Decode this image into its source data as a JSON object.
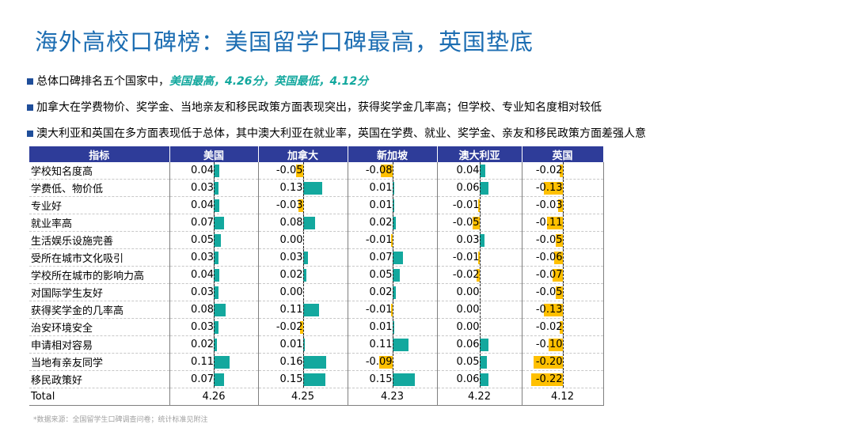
{
  "title": "海外高校口碑榜：美国留学口碑最高，英国垫底",
  "bullets": [
    {
      "text": "总体口碑排名五个国家中，",
      "highlight": "美国最高，4.26分，英国最低，4.12分"
    },
    {
      "text": "加拿大在学费物价、奖学金、当地亲友和移民政策方面表现突出，获得奖学金几率高；但学校、专业知名度相对较低",
      "highlight": ""
    },
    {
      "text": "澳大利亚和英国在多方面表现低于总体，其中澳大利亚在就业率，英国在学费、就业、奖学金、亲友和移民政策方面差强人意",
      "highlight": ""
    }
  ],
  "colors": {
    "positive": "#13a89e",
    "negative": "#ffc000",
    "header": "#2e3c99"
  },
  "table": {
    "headers": [
      "指标",
      "美国",
      "加拿大",
      "新加坡",
      "澳大利亚",
      "英国"
    ],
    "scale_max": 0.25,
    "rows": [
      {
        "label": "学校知名度高",
        "values": [
          "0.04",
          "-0.05",
          "-0.08",
          "0.04",
          "-0.02"
        ]
      },
      {
        "label": "学费低、物价低",
        "values": [
          "0.03",
          "0.13",
          "0.01",
          "0.06",
          "-0.13"
        ]
      },
      {
        "label": "专业好",
        "values": [
          "0.04",
          "-0.03",
          "0.01",
          "-0.01",
          "-0.03"
        ]
      },
      {
        "label": "就业率高",
        "values": [
          "0.07",
          "0.08",
          "0.02",
          "-0.05",
          "-0.11"
        ]
      },
      {
        "label": "生活娱乐设施完善",
        "values": [
          "0.05",
          "0.00",
          "-0.01",
          "0.03",
          "-0.05"
        ]
      },
      {
        "label": "受所在城市文化吸引",
        "values": [
          "0.03",
          "0.03",
          "0.07",
          "-0.01",
          "-0.06"
        ]
      },
      {
        "label": "学校所在城市的影响力高",
        "values": [
          "0.04",
          "0.02",
          "0.05",
          "-0.02",
          "-0.07"
        ]
      },
      {
        "label": "对国际学生友好",
        "values": [
          "0.03",
          "0.00",
          "0.02",
          "0.00",
          "-0.05"
        ]
      },
      {
        "label": "获得奖学金的几率高",
        "values": [
          "0.08",
          "0.11",
          "-0.01",
          "0.00",
          "-0.13"
        ]
      },
      {
        "label": "治安环境安全",
        "values": [
          "0.03",
          "-0.02",
          "0.01",
          "0.00",
          "-0.02"
        ]
      },
      {
        "label": "申请相对容易",
        "values": [
          "0.02",
          "0.01",
          "0.11",
          "0.06",
          "-0.10"
        ]
      },
      {
        "label": "当地有亲友同学",
        "values": [
          "0.11",
          "0.16",
          "-0.09",
          "0.05",
          "-0.20"
        ]
      },
      {
        "label": "移民政策好",
        "values": [
          "0.07",
          "0.15",
          "0.15",
          "0.06",
          "-0.22"
        ]
      }
    ],
    "total_label": "Total",
    "totals": [
      "4.26",
      "4.25",
      "4.23",
      "4.22",
      "4.12"
    ]
  },
  "footnote": "*数据来源：全国留学生口碑调查问卷；统计标准见附注"
}
